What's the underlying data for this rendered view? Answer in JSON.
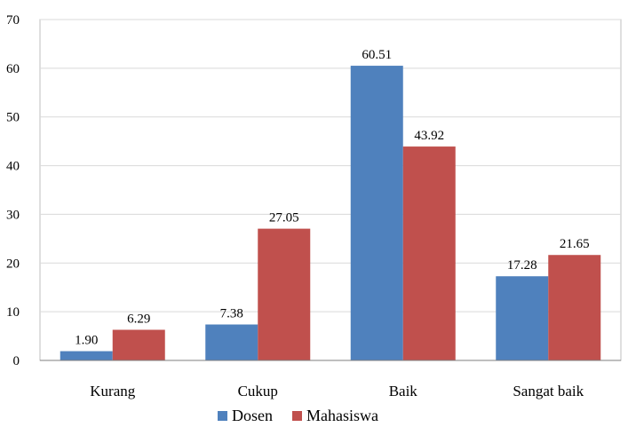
{
  "chart_data": {
    "type": "bar",
    "title": "",
    "xlabel": "",
    "ylabel": "",
    "ylim": [
      0,
      70
    ],
    "yticks": [
      0,
      10,
      20,
      30,
      40,
      50,
      60,
      70
    ],
    "categories": [
      "Kurang",
      "Cukup",
      "Baik",
      "Sangat baik"
    ],
    "series": [
      {
        "name": "Dosen",
        "color": "#4f81bd",
        "values": [
          1.9,
          7.38,
          60.51,
          17.28
        ],
        "labels": [
          "1.90",
          "7.38",
          "60.51",
          "17.28"
        ]
      },
      {
        "name": "Mahasiswa",
        "color": "#c0504d",
        "values": [
          6.29,
          27.05,
          43.92,
          21.65
        ],
        "labels": [
          "6.29",
          "27.05",
          "43.92",
          "21.65"
        ]
      }
    ],
    "legend_position": "bottom",
    "grid": true
  }
}
